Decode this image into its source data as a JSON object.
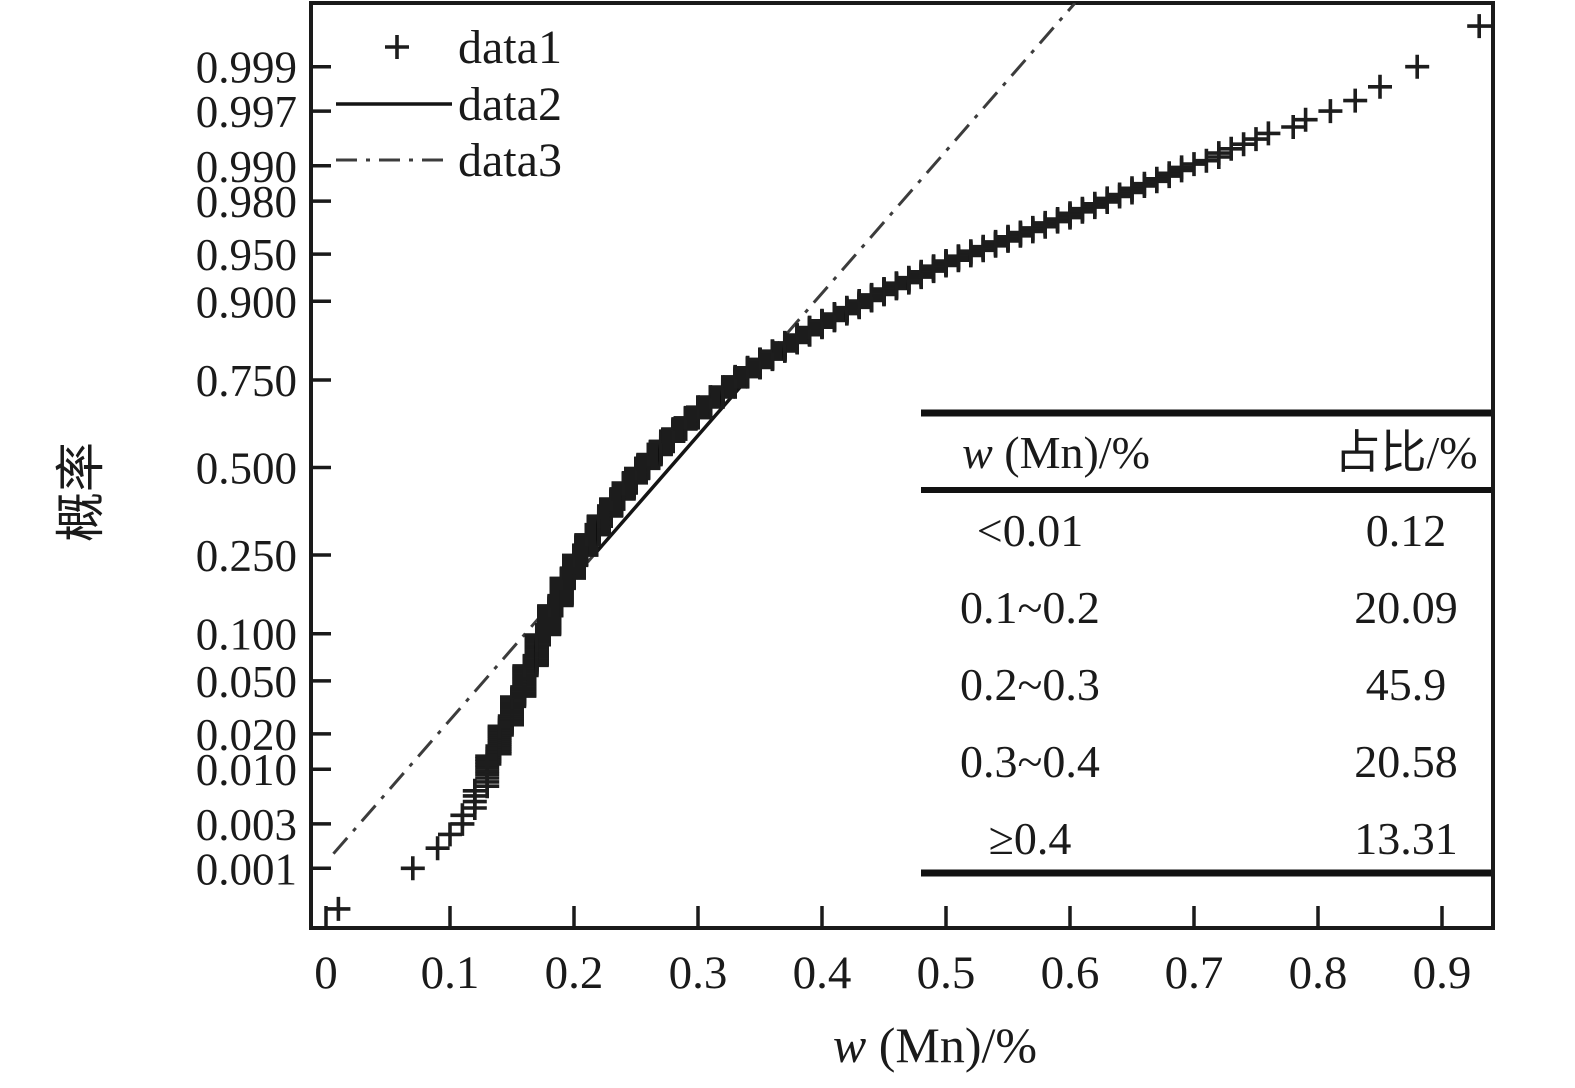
{
  "figure": {
    "background": "#ffffff",
    "ink_color": "#1a1a1a"
  },
  "chart_data": {
    "type": "scatter",
    "subtype": "normal-probability-plot",
    "title": "",
    "x_axis": {
      "title_var": "w",
      "title_rest": " (Mn)/%",
      "ticks": [
        0,
        0.1,
        0.2,
        0.3,
        0.4,
        0.5,
        0.6,
        0.7,
        0.8,
        0.9
      ],
      "tick_labels": [
        "0",
        "0.1",
        "0.2",
        "0.3",
        "0.4",
        "0.5",
        "0.6",
        "0.7",
        "0.8",
        "0.9"
      ],
      "range": [
        -0.012,
        0.941
      ],
      "grid": false
    },
    "y_axis": {
      "title": "概率",
      "scale": "normal-probability",
      "ticks": [
        0.999,
        0.997,
        0.99,
        0.98,
        0.95,
        0.9,
        0.75,
        0.5,
        0.25,
        0.1,
        0.05,
        0.02,
        0.01,
        0.003,
        0.001
      ],
      "tick_labels": [
        "0.999",
        "0.997",
        "0.990",
        "0.980",
        "0.950",
        "0.900",
        "0.750",
        "0.500",
        "0.250",
        "0.100",
        "0.050",
        "0.020",
        "0.010",
        "0.003",
        "0.001"
      ],
      "grid": false
    },
    "legend": {
      "position": "top-left-inside",
      "items": [
        {
          "label": "data1",
          "symbol": "plus-marker"
        },
        {
          "label": "data2",
          "symbol": "solid-line"
        },
        {
          "label": "data3",
          "symbol": "dashdot-line"
        }
      ]
    },
    "series": {
      "data1": {
        "kind": "scatter",
        "marker": "plus",
        "n_points": 1500,
        "x_resolution": 0.01,
        "cdf_points": [
          [
            0.01,
            0.00033
          ],
          [
            0.07,
            0.001
          ],
          [
            0.1,
            0.0024
          ],
          [
            0.115,
            0.004
          ],
          [
            0.125,
            0.007
          ],
          [
            0.13,
            0.01
          ],
          [
            0.14,
            0.018
          ],
          [
            0.15,
            0.03
          ],
          [
            0.16,
            0.05
          ],
          [
            0.17,
            0.08
          ],
          [
            0.18,
            0.12
          ],
          [
            0.19,
            0.17
          ],
          [
            0.2,
            0.225
          ],
          [
            0.22,
            0.33
          ],
          [
            0.24,
            0.43
          ],
          [
            0.26,
            0.52
          ],
          [
            0.28,
            0.6
          ],
          [
            0.3,
            0.665
          ],
          [
            0.32,
            0.72
          ],
          [
            0.34,
            0.77
          ],
          [
            0.36,
            0.807
          ],
          [
            0.38,
            0.84
          ],
          [
            0.4,
            0.866
          ],
          [
            0.44,
            0.905
          ],
          [
            0.48,
            0.932
          ],
          [
            0.52,
            0.951
          ],
          [
            0.56,
            0.964
          ],
          [
            0.6,
            0.974
          ],
          [
            0.64,
            0.982
          ],
          [
            0.68,
            0.988
          ],
          [
            0.72,
            0.992
          ],
          [
            0.76,
            0.9948
          ],
          [
            0.8,
            0.9966
          ],
          [
            0.84,
            0.9981
          ],
          [
            0.88,
            0.999
          ],
          [
            0.92,
            0.99955
          ]
        ]
      },
      "data2": {
        "kind": "line",
        "style": "solid",
        "anchors_x_p": [
          [
            0.216,
            0.25
          ],
          [
            0.339,
            0.75
          ]
        ]
      },
      "data3": {
        "kind": "line",
        "style": "dash-dot",
        "through_x_p": [
          [
            0.216,
            0.25
          ],
          [
            0.339,
            0.75
          ]
        ],
        "x_start": 0.006,
        "extends_to_top": true
      }
    },
    "inset_table": {
      "header": {
        "col1_var": "w",
        "col1_rest": " (Mn)/%",
        "col2": "占比/%"
      },
      "rows": [
        [
          "<0.01",
          "0.12"
        ],
        [
          "0.1~0.2",
          "20.09"
        ],
        [
          "0.2~0.3",
          "45.9"
        ],
        [
          "0.3~0.4",
          "20.58"
        ],
        [
          "≥0.4",
          "13.31"
        ]
      ]
    }
  }
}
